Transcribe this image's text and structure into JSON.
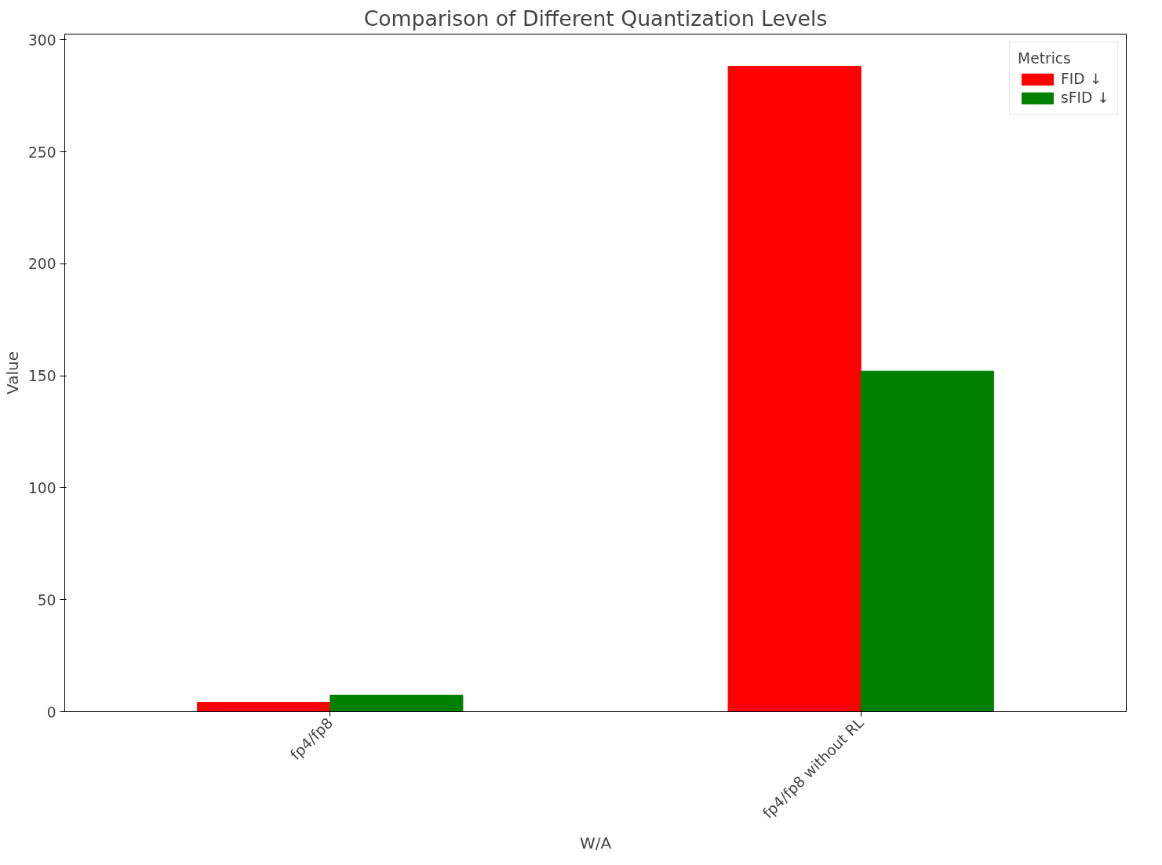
{
  "chart_data": {
    "type": "bar",
    "title": "Comparison of Different Quantization Levels",
    "xlabel": "W/A",
    "ylabel": "Value",
    "legend_title": "Metrics",
    "categories": [
      "fp4/fp8",
      "fp4/fp8 without RL"
    ],
    "series": [
      {
        "name": "FID ↓",
        "color": "#ff0000",
        "values": [
          4.2,
          288.2
        ]
      },
      {
        "name": "sFID ↓",
        "color": "#008000",
        "values": [
          7.4,
          152.1
        ]
      }
    ],
    "ylim": [
      0,
      302.6
    ],
    "yticks": [
      0,
      50,
      100,
      150,
      200,
      250,
      300
    ],
    "grid": false,
    "legend": "top right"
  }
}
